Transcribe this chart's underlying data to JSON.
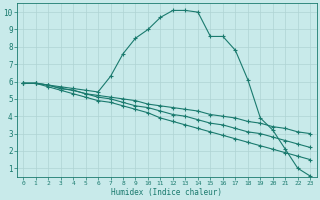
{
  "xlabel": "Humidex (Indice chaleur)",
  "bg_color": "#c8eaea",
  "grid_color": "#afd4d4",
  "line_color": "#1a7a6e",
  "xlim": [
    -0.5,
    23.5
  ],
  "ylim": [
    0.5,
    10.5
  ],
  "xticks": [
    0,
    1,
    2,
    3,
    4,
    5,
    6,
    7,
    8,
    9,
    10,
    11,
    12,
    13,
    14,
    15,
    16,
    17,
    18,
    19,
    20,
    21,
    22,
    23
  ],
  "yticks": [
    1,
    2,
    3,
    4,
    5,
    6,
    7,
    8,
    9,
    10
  ],
  "line1_x": [
    0,
    1,
    2,
    3,
    4,
    5,
    6,
    7,
    8,
    9,
    10,
    11,
    12,
    13,
    14,
    15,
    16,
    17,
    18,
    19,
    20,
    21,
    22,
    23
  ],
  "line1_y": [
    5.9,
    5.9,
    5.8,
    5.7,
    5.6,
    5.5,
    5.4,
    6.3,
    7.6,
    8.5,
    9.0,
    9.7,
    10.1,
    10.1,
    10.0,
    8.6,
    8.6,
    7.8,
    6.1,
    3.9,
    3.2,
    2.1,
    1.0,
    0.55
  ],
  "line2_x": [
    0,
    1,
    2,
    3,
    4,
    5,
    6,
    7,
    8,
    9,
    10,
    11,
    12,
    13,
    14,
    15,
    16,
    17,
    18,
    19,
    20,
    21,
    22,
    23
  ],
  "line2_y": [
    5.9,
    5.9,
    5.8,
    5.6,
    5.5,
    5.3,
    5.2,
    5.1,
    5.0,
    4.9,
    4.7,
    4.6,
    4.5,
    4.4,
    4.3,
    4.1,
    4.0,
    3.9,
    3.7,
    3.6,
    3.4,
    3.3,
    3.1,
    3.0
  ],
  "line3_x": [
    0,
    1,
    2,
    3,
    4,
    5,
    6,
    7,
    8,
    9,
    10,
    11,
    12,
    13,
    14,
    15,
    16,
    17,
    18,
    19,
    20,
    21,
    22,
    23
  ],
  "line3_y": [
    5.9,
    5.9,
    5.8,
    5.6,
    5.5,
    5.3,
    5.1,
    5.0,
    4.8,
    4.6,
    4.5,
    4.3,
    4.1,
    4.0,
    3.8,
    3.6,
    3.5,
    3.3,
    3.1,
    3.0,
    2.8,
    2.6,
    2.4,
    2.2
  ],
  "line4_x": [
    0,
    1,
    2,
    3,
    4,
    5,
    6,
    7,
    8,
    9,
    10,
    11,
    12,
    13,
    14,
    15,
    16,
    17,
    18,
    19,
    20,
    21,
    22,
    23
  ],
  "line4_y": [
    5.9,
    5.9,
    5.7,
    5.5,
    5.3,
    5.1,
    4.9,
    4.8,
    4.6,
    4.4,
    4.2,
    3.9,
    3.7,
    3.5,
    3.3,
    3.1,
    2.9,
    2.7,
    2.5,
    2.3,
    2.1,
    1.9,
    1.7,
    1.5
  ]
}
